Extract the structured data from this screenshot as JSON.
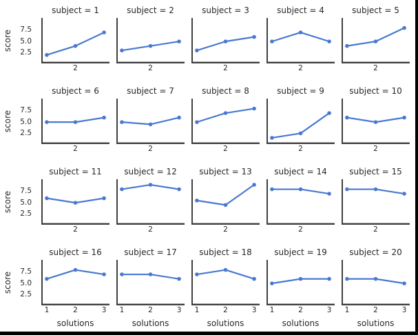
{
  "figure": {
    "ylabel": "score",
    "xlabel": "solutions",
    "yticks": [
      "7.5",
      "5.0",
      "2.5"
    ],
    "inner_xticks": [
      "2"
    ],
    "bottom_xticks": [
      "1",
      "2",
      "3"
    ],
    "line_color": "#4878d0",
    "spine_color": "#3d3d3d",
    "text_color": "#262626"
  },
  "chart_data": {
    "type": "line",
    "layout": "facet-grid 4 rows x 5 cols",
    "x": [
      1,
      2,
      3
    ],
    "xlabel": "solutions",
    "ylabel": "score",
    "ylim": [
      0.5,
      10
    ],
    "yticks": [
      2.5,
      5.0,
      7.5
    ],
    "xticks_bottom_row": [
      1,
      2,
      3
    ],
    "xticks_inner_rows": [
      2
    ],
    "grid": false,
    "legend": false,
    "facets": [
      {
        "label": "subject = 1",
        "values": [
          2,
          4,
          7
        ]
      },
      {
        "label": "subject = 2",
        "values": [
          3,
          4,
          5
        ]
      },
      {
        "label": "subject = 3",
        "values": [
          3,
          5,
          6
        ]
      },
      {
        "label": "subject = 4",
        "values": [
          5,
          7,
          5
        ]
      },
      {
        "label": "subject = 5",
        "values": [
          4,
          5,
          8
        ]
      },
      {
        "label": "subject = 6",
        "values": [
          5,
          5,
          6
        ]
      },
      {
        "label": "subject = 7",
        "values": [
          5,
          4.5,
          6
        ]
      },
      {
        "label": "subject = 8",
        "values": [
          5,
          7,
          8
        ]
      },
      {
        "label": "subject = 9",
        "values": [
          1.5,
          2.5,
          7
        ]
      },
      {
        "label": "subject = 10",
        "values": [
          6,
          5,
          6
        ]
      },
      {
        "label": "subject = 11",
        "values": [
          6,
          5,
          6
        ]
      },
      {
        "label": "subject = 12",
        "values": [
          8,
          9,
          8
        ]
      },
      {
        "label": "subject = 13",
        "values": [
          5.5,
          4.5,
          9
        ]
      },
      {
        "label": "subject = 14",
        "values": [
          8,
          8,
          7
        ]
      },
      {
        "label": "subject = 15",
        "values": [
          8,
          8,
          7
        ]
      },
      {
        "label": "subject = 16",
        "values": [
          6,
          8,
          7
        ]
      },
      {
        "label": "subject = 17",
        "values": [
          7,
          7,
          6
        ]
      },
      {
        "label": "subject = 18",
        "values": [
          7,
          8,
          6
        ]
      },
      {
        "label": "subject = 19",
        "values": [
          5,
          6,
          6
        ]
      },
      {
        "label": "subject = 20",
        "values": [
          6,
          6,
          5
        ]
      }
    ]
  }
}
